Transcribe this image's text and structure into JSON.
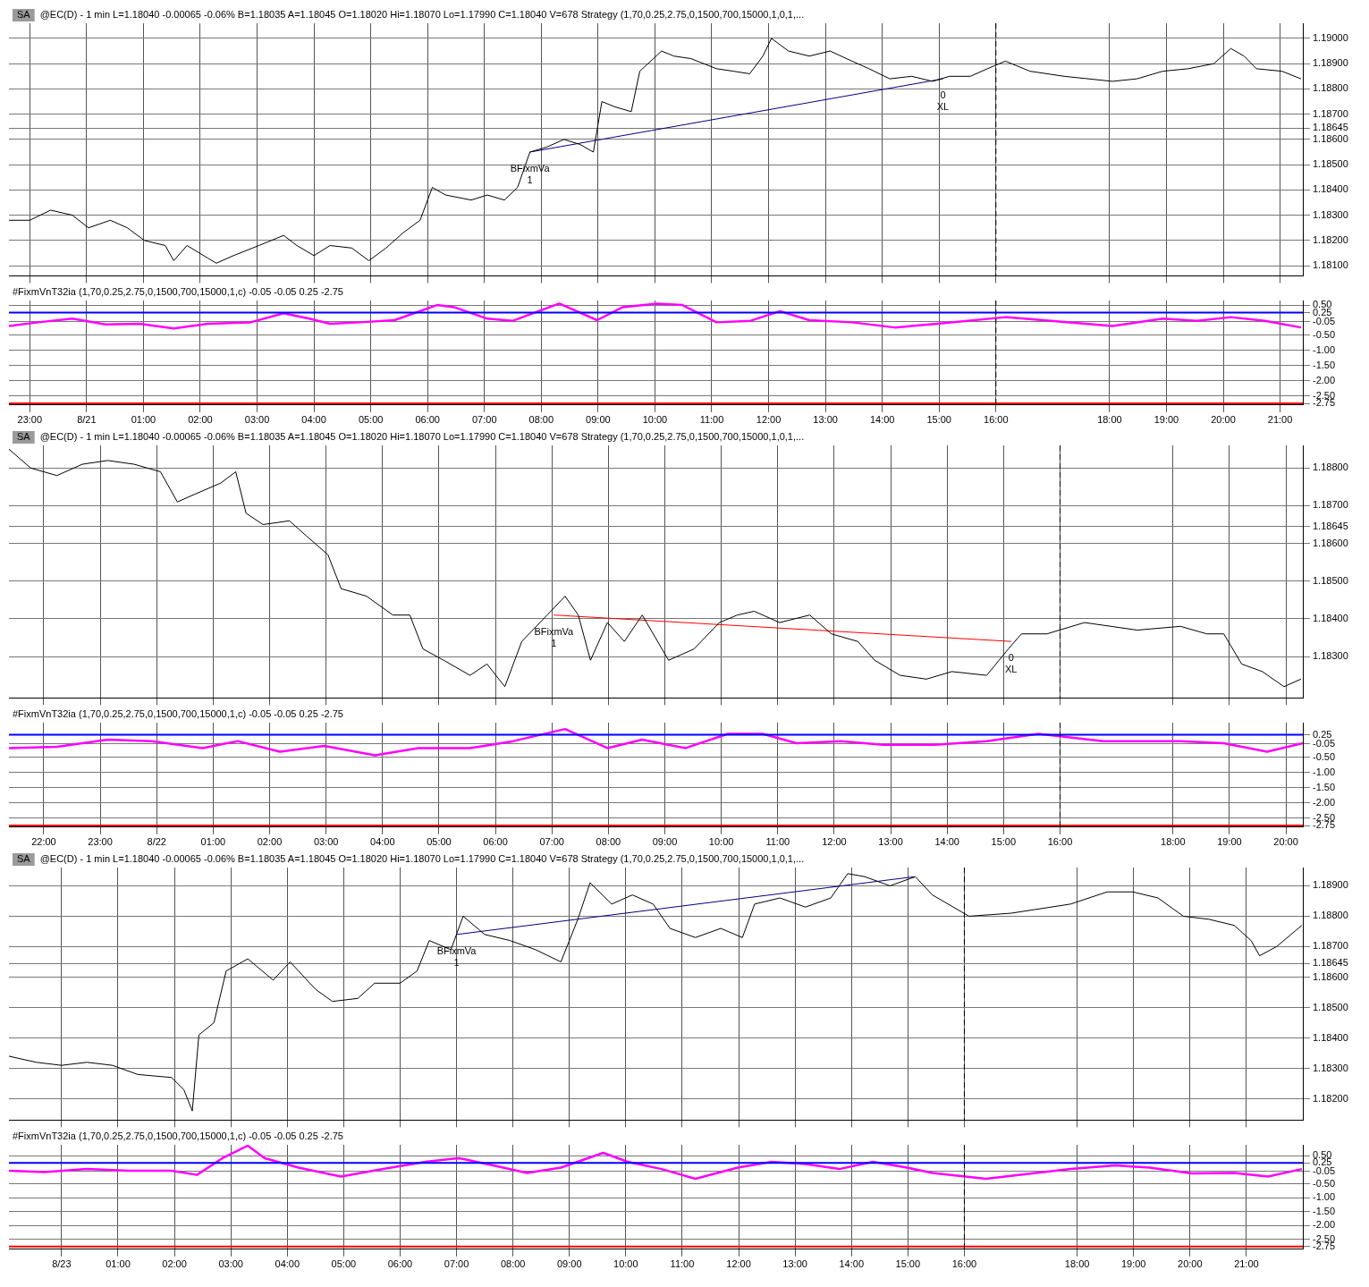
{
  "chart_data": [
    {
      "type": "line",
      "title": "@EC(D) - 1 min L=1.18040 -0.00065 -0.06% B=1.18035 A=1.18045 O=1.18020 Hi=1.18070 Lo=1.17990 C=1.18040 V=678 Strategy (1,70,0.25,2.75,0,1500,700,15000,1,0,1,...",
      "annotations": [
        "SA",
        {
          "text": "BFixmVa",
          "x": "--08-21T07:48",
          "y": 1.1855
        },
        {
          "text": "1",
          "x": "--08-21T07:48",
          "y": 1.1855
        },
        {
          "text": "0",
          "x": "--08-21T15:04",
          "y": 1.1884
        },
        {
          "text": "XL",
          "x": "--08-21T15:04",
          "y": 1.1884
        }
      ],
      "series": [
        {
          "color": "#000000",
          "x": [
            "--08-20T22:38",
            "--08-20T23:00",
            "--08-20T23:22",
            "--08-20T23:45",
            "--08-21T00:02",
            "--08-21T00:25",
            "--08-21T00:43",
            "--08-21T01:01",
            "--08-21T01:23",
            "--08-21T01:32",
            "--08-21T01:46",
            "--08-21T02:08",
            "--08-21T02:17",
            "--08-21T02:35",
            "--08-21T03:02",
            "--08-21T03:28",
            "--08-21T03:42",
            "--08-21T04:00",
            "--08-21T04:17",
            "--08-21T04:40",
            "--08-21T04:58",
            "--08-21T05:16",
            "--08-21T05:34",
            "--08-21T05:52",
            "--08-21T06:05",
            "--08-21T06:19",
            "--08-21T06:46",
            "--08-21T07:03",
            "--08-21T07:21",
            "--08-21T07:35",
            "--08-21T07:48",
            "--08-21T08:06",
            "--08-21T08:24",
            "--08-21T08:41",
            "--08-21T08:55",
            "--08-21T09:04",
            "--08-21T09:17",
            "--08-21T09:35",
            "--08-21T09:44",
            "--08-21T10:07",
            "--08-21T10:20",
            "--08-21T10:38",
            "--08-21T11:05",
            "--08-21T11:23",
            "--08-21T11:40",
            "--08-21T11:54",
            "--08-21T12:03",
            "--08-21T12:21",
            "--08-21T12:43",
            "--08-21T13:05",
            "--08-21T13:28",
            "--08-21T13:46",
            "--08-21T14:08",
            "--08-21T14:31",
            "--08-21T14:53",
            "--08-21T15:11",
            "--08-21T15:33",
            "--08-21T15:51",
            "--08-21T16:10",
            "--08-21T16:36",
            "--08-21T17:12",
            "--08-21T18:03",
            "--08-21T18:29",
            "--08-21T18:56",
            "--08-21T19:23",
            "--08-21T19:50",
            "--08-21T20:08",
            "--08-21T20:22",
            "--08-21T20:35",
            "--08-21T21:02",
            "--08-21T21:22"
          ],
          "values": [
            1.1828,
            1.1828,
            1.1832,
            1.183,
            1.1825,
            1.1828,
            1.1825,
            1.182,
            1.1818,
            1.1812,
            1.1818,
            1.1813,
            1.1811,
            1.1814,
            1.1818,
            1.1822,
            1.1818,
            1.1814,
            1.1818,
            1.1817,
            1.1812,
            1.1817,
            1.1823,
            1.1828,
            1.1841,
            1.1838,
            1.1836,
            1.1838,
            1.1836,
            1.1841,
            1.1855,
            1.1857,
            1.186,
            1.1858,
            1.1855,
            1.1875,
            1.1873,
            1.1871,
            1.1887,
            1.1895,
            1.1893,
            1.1892,
            1.1888,
            1.1887,
            1.1886,
            1.1893,
            1.19,
            1.1895,
            1.1893,
            1.1895,
            1.1891,
            1.1888,
            1.1884,
            1.1885,
            1.1883,
            1.1885,
            1.1885,
            1.1888,
            1.1891,
            1.1887,
            1.1885,
            1.1883,
            1.1884,
            1.1887,
            1.1888,
            1.189,
            1.1896,
            1.1893,
            1.1888,
            1.1887,
            1.1884
          ]
        },
        {
          "type": "line",
          "color": "#000080",
          "x": [
            "--08-21T07:48",
            "--08-21T15:04"
          ],
          "values": [
            1.1855,
            1.1884
          ]
        }
      ],
      "xlim": [
        "--08-20T22:38",
        "--08-21T21:24"
      ],
      "ylim": [
        1.1806,
        1.1906
      ],
      "xticks": [
        {
          "value": "--08-20T23:00",
          "label": "23:00"
        },
        {
          "value": "--08-21T00:00",
          "label": "8/21"
        },
        {
          "value": "--08-21T01:00",
          "label": "01:00"
        },
        {
          "value": "--08-21T02:00",
          "label": "02:00"
        },
        {
          "value": "--08-21T03:00",
          "label": "03:00"
        },
        {
          "value": "--08-21T04:00",
          "label": "04:00"
        },
        {
          "value": "--08-21T05:00",
          "label": "05:00"
        },
        {
          "value": "--08-21T06:00",
          "label": "06:00"
        },
        {
          "value": "--08-21T07:00",
          "label": "07:00"
        },
        {
          "value": "--08-21T08:00",
          "label": "08:00"
        },
        {
          "value": "--08-21T09:00",
          "label": "09:00"
        },
        {
          "value": "--08-21T10:00",
          "label": "10:00"
        },
        {
          "value": "--08-21T11:00",
          "label": "11:00"
        },
        {
          "value": "--08-21T12:00",
          "label": "12:00"
        },
        {
          "value": "--08-21T13:00",
          "label": "13:00"
        },
        {
          "value": "--08-21T14:00",
          "label": "14:00"
        },
        {
          "value": "--08-21T15:00",
          "label": "15:00"
        },
        {
          "value": "--08-21T16:00",
          "label": "16:00"
        },
        {
          "value": "--08-21T18:00",
          "label": "18:00"
        },
        {
          "value": "--08-21T19:00",
          "label": "19:00"
        },
        {
          "value": "--08-21T20:00",
          "label": "20:00"
        },
        {
          "value": "--08-21T21:00",
          "label": "21:00"
        }
      ],
      "yticks": [
        {
          "value": 1.181,
          "label": "1.18100"
        },
        {
          "value": 1.182,
          "label": "1.18200"
        },
        {
          "value": 1.183,
          "label": "1.18300"
        },
        {
          "value": 1.184,
          "label": "1.18400"
        },
        {
          "value": 1.185,
          "label": "1.18500"
        },
        {
          "value": 1.186,
          "label": "1.18600"
        },
        {
          "value": 1.18645,
          "label": "1.18645"
        },
        {
          "value": 1.187,
          "label": "1.18700"
        },
        {
          "value": 1.188,
          "label": "1.18800"
        },
        {
          "value": 1.189,
          "label": "1.18900"
        },
        {
          "value": 1.19,
          "label": "1.19000"
        }
      ],
      "ref_lines": [
        {
          "axis": "x",
          "value": "--08-21T16:00",
          "color": "#000000",
          "line_style": "dashed"
        }
      ],
      "grid": true,
      "marker": "none",
      "tick_labels": "y"
    },
    {
      "type": "line",
      "title": "#FixmVnT32ia (1,70,0.25,2.75,0,1500,700,15000,1,c) -0.05 -0.05 0.25 -2.75",
      "series": [
        {
          "color": "#ff00ff",
          "x": [
            "--08-20T22:38",
            "--08-20T23:09",
            "--08-20T23:45",
            "--08-21T00:20",
            "--08-21T00:56",
            "--08-21T01:32",
            "--08-21T02:08",
            "--08-21T02:53",
            "--08-21T03:28",
            "--08-21T03:55",
            "--08-21T04:17",
            "--08-21T04:49",
            "--08-21T05:25",
            "--08-21T06:10",
            "--08-21T06:28",
            "--08-21T07:03",
            "--08-21T07:30",
            "--08-21T08:19",
            "--08-21T08:59",
            "--08-21T09:26",
            "--08-21T10:02",
            "--08-21T10:29",
            "--08-21T11:05",
            "--08-21T11:41",
            "--08-21T12:12",
            "--08-21T12:43",
            "--08-21T13:28",
            "--08-21T14:13",
            "--08-21T14:58",
            "--08-21T16:10",
            "--08-21T18:03",
            "--08-21T18:56",
            "--08-21T19:32",
            "--08-21T20:08",
            "--08-21T20:44",
            "--08-21T21:22"
          ],
          "values": [
            -0.19,
            -0.07,
            0.05,
            -0.14,
            -0.12,
            -0.27,
            -0.12,
            -0.07,
            0.23,
            0.05,
            -0.12,
            -0.07,
            0,
            0.5,
            0.43,
            0.05,
            -0.02,
            0.55,
            0,
            0.43,
            0.55,
            0.5,
            -0.07,
            -0.02,
            0.3,
            0,
            -0.07,
            -0.24,
            -0.12,
            0.1,
            -0.19,
            0.05,
            -0.02,
            0.1,
            -0.02,
            -0.24
          ]
        }
      ],
      "xlim": [
        "--08-20T22:38",
        "--08-21T21:24"
      ],
      "ylim": [
        -2.8,
        0.65
      ],
      "xticks": [
        {
          "value": "--08-20T23:00",
          "label": "23:00"
        },
        {
          "value": "--08-21T00:00",
          "label": "8/21"
        },
        {
          "value": "--08-21T01:00",
          "label": "01:00"
        },
        {
          "value": "--08-21T02:00",
          "label": "02:00"
        },
        {
          "value": "--08-21T03:00",
          "label": "03:00"
        },
        {
          "value": "--08-21T04:00",
          "label": "04:00"
        },
        {
          "value": "--08-21T05:00",
          "label": "05:00"
        },
        {
          "value": "--08-21T06:00",
          "label": "06:00"
        },
        {
          "value": "--08-21T07:00",
          "label": "07:00"
        },
        {
          "value": "--08-21T08:00",
          "label": "08:00"
        },
        {
          "value": "--08-21T09:00",
          "label": "09:00"
        },
        {
          "value": "--08-21T10:00",
          "label": "10:00"
        },
        {
          "value": "--08-21T11:00",
          "label": "11:00"
        },
        {
          "value": "--08-21T12:00",
          "label": "12:00"
        },
        {
          "value": "--08-21T13:00",
          "label": "13:00"
        },
        {
          "value": "--08-21T14:00",
          "label": "14:00"
        },
        {
          "value": "--08-21T15:00",
          "label": "15:00"
        },
        {
          "value": "--08-21T16:00",
          "label": "16:00"
        },
        {
          "value": "--08-21T18:00",
          "label": "18:00"
        },
        {
          "value": "--08-21T19:00",
          "label": "19:00"
        },
        {
          "value": "--08-21T20:00",
          "label": "20:00"
        },
        {
          "value": "--08-21T21:00",
          "label": "21:00"
        }
      ],
      "yticks": [
        {
          "value": -2.75,
          "label": "-2.75"
        },
        {
          "value": -2.5,
          "label": "-2.50"
        },
        {
          "value": -2,
          "label": "-2.00"
        },
        {
          "value": -1.5,
          "label": "-1.50"
        },
        {
          "value": -1,
          "label": "-1.00"
        },
        {
          "value": -0.5,
          "label": "-0.50"
        },
        {
          "value": -0.05,
          "label": "-0.05"
        },
        {
          "value": 0.25,
          "label": "0.25"
        },
        {
          "value": 0.5,
          "label": "0.50"
        }
      ],
      "ref_lines": [
        {
          "axis": "y",
          "value": 0.25,
          "color": "#0000ff"
        },
        {
          "axis": "y",
          "value": -2.75,
          "color": "#ff0000"
        },
        {
          "axis": "x",
          "value": "--08-21T16:00",
          "color": "#000000",
          "line_style": "dashed"
        }
      ],
      "grid": true,
      "marker": "none"
    },
    {
      "type": "line",
      "title": "@EC(D) - 1 min L=1.18040 -0.00065 -0.06% B=1.18035 A=1.18045 O=1.18020 Hi=1.18070 Lo=1.17990 C=1.18040 V=678 Strategy (1,70,0.25,2.75,0,1500,700,15000,1,0,1,...",
      "annotations": [
        "SA",
        {
          "text": "BFixmVa",
          "x": "--08-22T07:02",
          "y": 1.1841
        },
        {
          "text": "1",
          "x": "--08-22T07:02",
          "y": 1.1841
        },
        {
          "text": "0",
          "x": "--08-22T15:08",
          "y": 1.1834
        },
        {
          "text": "XL",
          "x": "--08-22T15:08",
          "y": 1.1834
        }
      ],
      "series": [
        {
          "color": "#000000",
          "x": [
            "--08-21T21:23",
            "--08-21T21:46",
            "--08-21T22:14",
            "--08-21T22:41",
            "--08-21T23:08",
            "--08-21T23:36",
            "--08-22T00:04",
            "--08-22T00:22",
            "--08-22T00:40",
            "--08-22T01:08",
            "--08-22T01:24",
            "--08-22T01:35",
            "--08-22T01:53",
            "--08-22T02:21",
            "--08-22T02:39",
            "--08-22T03:02",
            "--08-22T03:16",
            "--08-22T03:43",
            "--08-22T04:11",
            "--08-22T04:29",
            "--08-22T04:43",
            "--08-22T05:05",
            "--08-22T05:33",
            "--08-22T05:51",
            "--08-22T06:10",
            "--08-22T06:28",
            "--08-22T06:55",
            "--08-22T07:14",
            "--08-22T07:28",
            "--08-22T07:41",
            "--08-22T07:59",
            "--08-22T08:17",
            "--08-22T08:36",
            "--08-22T09:04",
            "--08-22T09:31",
            "--08-22T09:58",
            "--08-22T10:17",
            "--08-22T10:35",
            "--08-22T11:02",
            "--08-22T11:34",
            "--08-22T11:57",
            "--08-22T12:25",
            "--08-22T12:43",
            "--08-22T13:10",
            "--08-22T13:38",
            "--08-22T14:05",
            "--08-22T14:42",
            "--08-22T15:05",
            "--08-22T15:19",
            "--08-22T15:46",
            "--08-22T16:26",
            "--08-22T17:22",
            "--08-22T18:08",
            "--08-22T18:36",
            "--08-22T18:54",
            "--08-22T19:13",
            "--08-22T19:35",
            "--08-22T19:58",
            "--08-22T20:16"
          ],
          "values": [
            1.1885,
            1.188,
            1.1878,
            1.1881,
            1.1882,
            1.1881,
            1.1879,
            1.1871,
            1.1873,
            1.1876,
            1.1879,
            1.1868,
            1.1865,
            1.1866,
            1.1862,
            1.1857,
            1.1848,
            1.1846,
            1.1841,
            1.1841,
            1.1832,
            1.1829,
            1.1825,
            1.1828,
            1.1822,
            1.1834,
            1.1841,
            1.1846,
            1.1841,
            1.1829,
            1.1839,
            1.1834,
            1.1841,
            1.1829,
            1.1832,
            1.1839,
            1.1841,
            1.1842,
            1.1839,
            1.1841,
            1.1836,
            1.1834,
            1.1829,
            1.1825,
            1.1824,
            1.1826,
            1.1825,
            1.1832,
            1.1836,
            1.1836,
            1.1839,
            1.1837,
            1.1838,
            1.1836,
            1.1836,
            1.1828,
            1.1826,
            1.1822,
            1.1824
          ]
        },
        {
          "type": "line",
          "color": "#ff0000",
          "x": [
            "--08-22T07:02",
            "--08-22T15:08"
          ],
          "values": [
            1.1841,
            1.1834
          ]
        }
      ],
      "xlim": [
        "--08-21T21:23",
        "--08-22T20:18"
      ],
      "ylim": [
        1.1819,
        1.1886
      ],
      "xticks": [
        {
          "value": "--08-21T22:00",
          "label": "22:00"
        },
        {
          "value": "--08-21T23:00",
          "label": "23:00"
        },
        {
          "value": "--08-22T00:00",
          "label": "8/22"
        },
        {
          "value": "--08-22T01:00",
          "label": "01:00"
        },
        {
          "value": "--08-22T02:00",
          "label": "02:00"
        },
        {
          "value": "--08-22T03:00",
          "label": "03:00"
        },
        {
          "value": "--08-22T04:00",
          "label": "04:00"
        },
        {
          "value": "--08-22T05:00",
          "label": "05:00"
        },
        {
          "value": "--08-22T06:00",
          "label": "06:00"
        },
        {
          "value": "--08-22T07:00",
          "label": "07:00"
        },
        {
          "value": "--08-22T08:00",
          "label": "08:00"
        },
        {
          "value": "--08-22T09:00",
          "label": "09:00"
        },
        {
          "value": "--08-22T10:00",
          "label": "10:00"
        },
        {
          "value": "--08-22T11:00",
          "label": "11:00"
        },
        {
          "value": "--08-22T12:00",
          "label": "12:00"
        },
        {
          "value": "--08-22T13:00",
          "label": "13:00"
        },
        {
          "value": "--08-22T14:00",
          "label": "14:00"
        },
        {
          "value": "--08-22T15:00",
          "label": "15:00"
        },
        {
          "value": "--08-22T16:00",
          "label": "16:00"
        },
        {
          "value": "--08-22T18:00",
          "label": "18:00"
        },
        {
          "value": "--08-22T19:00",
          "label": "19:00"
        },
        {
          "value": "--08-22T20:00",
          "label": "20:00"
        }
      ],
      "yticks": [
        {
          "value": 1.183,
          "label": "1.18300"
        },
        {
          "value": 1.184,
          "label": "1.18400"
        },
        {
          "value": 1.185,
          "label": "1.18500"
        },
        {
          "value": 1.186,
          "label": "1.18600"
        },
        {
          "value": 1.18645,
          "label": "1.18645"
        },
        {
          "value": 1.187,
          "label": "1.18700"
        },
        {
          "value": 1.188,
          "label": "1.18800"
        }
      ],
      "ref_lines": [
        {
          "axis": "x",
          "value": "--08-22T16:00",
          "color": "#000000",
          "line_style": "dashed"
        }
      ],
      "grid": true,
      "marker": "none",
      "tick_labels": "y"
    },
    {
      "type": "line",
      "title": "#FixmVnT32ia (1,70,0.25,2.75,0,1500,700,15000,1,c) -0.05 -0.05 0.25 -2.75",
      "series": [
        {
          "color": "#ff00ff",
          "x": [
            "--08-21T21:23",
            "--08-21T22:14",
            "--08-21T23:08",
            "--08-21T23:55",
            "--08-22T00:49",
            "--08-22T01:26",
            "--08-22T02:11",
            "--08-22T02:58",
            "--08-22T03:52",
            "--08-22T04:38",
            "--08-22T05:33",
            "--08-22T06:19",
            "--08-22T07:14",
            "--08-22T07:59",
            "--08-22T08:36",
            "--08-22T09:22",
            "--08-22T10:07",
            "--08-22T10:44",
            "--08-22T11:20",
            "--08-22T12:07",
            "--08-22T12:52",
            "--08-22T13:47",
            "--08-22T14:42",
            "--08-22T15:37",
            "--08-22T16:46",
            "--08-22T18:08",
            "--08-22T18:54",
            "--08-22T19:40",
            "--08-22T20:18"
          ],
          "values": [
            -0.19,
            -0.15,
            0.09,
            0.04,
            -0.19,
            0.04,
            -0.31,
            -0.12,
            -0.43,
            -0.19,
            -0.19,
            0.04,
            0.44,
            -0.19,
            0.09,
            -0.19,
            0.28,
            0.28,
            -0.03,
            0.04,
            -0.08,
            -0.08,
            0.04,
            0.28,
            0.04,
            0.04,
            -0.03,
            -0.31,
            -0.03
          ]
        }
      ],
      "xlim": [
        "--08-21T21:23",
        "--08-22T20:18"
      ],
      "ylim": [
        -2.8,
        0.65
      ],
      "xticks": [
        {
          "value": "--08-21T22:00",
          "label": "22:00"
        },
        {
          "value": "--08-21T23:00",
          "label": "23:00"
        },
        {
          "value": "--08-22T00:00",
          "label": "8/22"
        },
        {
          "value": "--08-22T01:00",
          "label": "01:00"
        },
        {
          "value": "--08-22T02:00",
          "label": "02:00"
        },
        {
          "value": "--08-22T03:00",
          "label": "03:00"
        },
        {
          "value": "--08-22T04:00",
          "label": "04:00"
        },
        {
          "value": "--08-22T05:00",
          "label": "05:00"
        },
        {
          "value": "--08-22T06:00",
          "label": "06:00"
        },
        {
          "value": "--08-22T07:00",
          "label": "07:00"
        },
        {
          "value": "--08-22T08:00",
          "label": "08:00"
        },
        {
          "value": "--08-22T09:00",
          "label": "09:00"
        },
        {
          "value": "--08-22T10:00",
          "label": "10:00"
        },
        {
          "value": "--08-22T11:00",
          "label": "11:00"
        },
        {
          "value": "--08-22T12:00",
          "label": "12:00"
        },
        {
          "value": "--08-22T13:00",
          "label": "13:00"
        },
        {
          "value": "--08-22T14:00",
          "label": "14:00"
        },
        {
          "value": "--08-22T15:00",
          "label": "15:00"
        },
        {
          "value": "--08-22T16:00",
          "label": "16:00"
        },
        {
          "value": "--08-22T18:00",
          "label": "18:00"
        },
        {
          "value": "--08-22T19:00",
          "label": "19:00"
        },
        {
          "value": "--08-22T20:00",
          "label": "20:00"
        }
      ],
      "yticks": [
        {
          "value": -2.75,
          "label": "-2.75"
        },
        {
          "value": -2.5,
          "label": "-2.50"
        },
        {
          "value": -2,
          "label": "-2.00"
        },
        {
          "value": -1.5,
          "label": "-1.50"
        },
        {
          "value": -1,
          "label": "-1.00"
        },
        {
          "value": -0.5,
          "label": "-0.50"
        },
        {
          "value": -0.05,
          "label": "-0.05"
        },
        {
          "value": 0.25,
          "label": "0.25"
        }
      ],
      "ref_lines": [
        {
          "axis": "y",
          "value": 0.25,
          "color": "#0000ff"
        },
        {
          "axis": "y",
          "value": -2.75,
          "color": "#ff0000"
        },
        {
          "axis": "x",
          "value": "--08-22T16:00",
          "color": "#000000",
          "line_style": "dashed"
        }
      ],
      "grid": true,
      "marker": "none"
    },
    {
      "type": "line",
      "title": "@EC(D) - 1 min L=1.18040 -0.00065 -0.06% B=1.18035 A=1.18045 O=1.18020 Hi=1.18070 Lo=1.17990 C=1.18040 V=678 Strategy (1,70,0.25,2.75,0,1500,700,15000,1,0,1,...",
      "annotations": [
        "SA",
        {
          "text": "BFixmVa",
          "x": "--08-23T07:00",
          "y": 1.1874
        },
        {
          "text": "1",
          "x": "--08-23T07:00",
          "y": 1.1874
        }
      ],
      "series": [
        {
          "color": "#000000",
          "x": [
            "--08-22T23:04",
            "--08-22T23:33",
            "--08-23T00:00",
            "--08-23T00:27",
            "--08-23T00:54",
            "--08-23T01:21",
            "--08-23T01:57",
            "--08-23T02:10",
            "--08-23T02:19",
            "--08-23T02:26",
            "--08-23T02:42",
            "--08-23T02:55",
            "--08-23T03:18",
            "--08-23T03:45",
            "--08-23T04:03",
            "--08-23T04:30",
            "--08-23T04:48",
            "--08-23T05:15",
            "--08-23T05:33",
            "--08-23T06:00",
            "--08-23T06:18",
            "--08-23T06:31",
            "--08-23T06:54",
            "--08-23T07:07",
            "--08-23T07:30",
            "--08-23T07:57",
            "--08-23T08:24",
            "--08-23T08:51",
            "--08-23T09:09",
            "--08-23T09:22",
            "--08-23T09:45",
            "--08-23T10:07",
            "--08-23T10:29",
            "--08-23T10:47",
            "--08-23T11:14",
            "--08-23T11:41",
            "--08-23T12:04",
            "--08-23T12:17",
            "--08-23T12:44",
            "--08-23T13:11",
            "--08-23T13:38",
            "--08-23T13:56",
            "--08-23T14:14",
            "--08-23T14:41",
            "--08-23T15:08",
            "--08-23T15:26",
            "--08-23T16:05",
            "--08-23T16:50",
            "--08-23T17:53",
            "--08-23T18:32",
            "--08-23T18:59",
            "--08-23T19:26",
            "--08-23T19:53",
            "--08-23T20:20",
            "--08-23T20:47",
            "--08-23T21:05",
            "--08-23T21:14",
            "--08-23T21:32",
            "--08-23T21:59"
          ],
          "values": [
            1.1834,
            1.1832,
            1.1831,
            1.1832,
            1.1831,
            1.1828,
            1.1827,
            1.1823,
            1.1816,
            1.1841,
            1.1845,
            1.1862,
            1.1866,
            1.1859,
            1.1865,
            1.1856,
            1.1852,
            1.1853,
            1.1858,
            1.1858,
            1.1862,
            1.1872,
            1.1869,
            1.188,
            1.1874,
            1.1872,
            1.1869,
            1.1865,
            1.1879,
            1.1891,
            1.1884,
            1.1887,
            1.1884,
            1.1876,
            1.1873,
            1.1876,
            1.1873,
            1.1884,
            1.1886,
            1.1883,
            1.1886,
            1.1894,
            1.1893,
            1.189,
            1.1893,
            1.1887,
            1.188,
            1.1881,
            1.1884,
            1.1888,
            1.1888,
            1.1886,
            1.188,
            1.1879,
            1.1877,
            1.1872,
            1.1867,
            1.187,
            1.1877
          ]
        },
        {
          "type": "line",
          "color": "#000080",
          "x": [
            "--08-23T07:00",
            "--08-23T15:07"
          ],
          "values": [
            1.1874,
            1.1893
          ]
        }
      ],
      "xlim": [
        "--08-22T23:04",
        "--08-23T22:00"
      ],
      "ylim": [
        1.1813,
        1.1896
      ],
      "xticks": [
        {
          "value": "--08-23T00:00",
          "label": "8/23"
        },
        {
          "value": "--08-23T01:00",
          "label": "01:00"
        },
        {
          "value": "--08-23T02:00",
          "label": "02:00"
        },
        {
          "value": "--08-23T03:00",
          "label": "03:00"
        },
        {
          "value": "--08-23T04:00",
          "label": "04:00"
        },
        {
          "value": "--08-23T05:00",
          "label": "05:00"
        },
        {
          "value": "--08-23T06:00",
          "label": "06:00"
        },
        {
          "value": "--08-23T07:00",
          "label": "07:00"
        },
        {
          "value": "--08-23T08:00",
          "label": "08:00"
        },
        {
          "value": "--08-23T09:00",
          "label": "09:00"
        },
        {
          "value": "--08-23T10:00",
          "label": "10:00"
        },
        {
          "value": "--08-23T11:00",
          "label": "11:00"
        },
        {
          "value": "--08-23T12:00",
          "label": "12:00"
        },
        {
          "value": "--08-23T13:00",
          "label": "13:00"
        },
        {
          "value": "--08-23T14:00",
          "label": "14:00"
        },
        {
          "value": "--08-23T15:00",
          "label": "15:00"
        },
        {
          "value": "--08-23T16:00",
          "label": "16:00"
        },
        {
          "value": "--08-23T18:00",
          "label": "18:00"
        },
        {
          "value": "--08-23T19:00",
          "label": "19:00"
        },
        {
          "value": "--08-23T20:00",
          "label": "20:00"
        },
        {
          "value": "--08-23T21:00",
          "label": "21:00"
        }
      ],
      "yticks": [
        {
          "value": 1.182,
          "label": "1.18200"
        },
        {
          "value": 1.183,
          "label": "1.18300"
        },
        {
          "value": 1.184,
          "label": "1.18400"
        },
        {
          "value": 1.185,
          "label": "1.18500"
        },
        {
          "value": 1.186,
          "label": "1.18600"
        },
        {
          "value": 1.18645,
          "label": "1.18645"
        },
        {
          "value": 1.187,
          "label": "1.18700"
        },
        {
          "value": 1.188,
          "label": "1.18800"
        },
        {
          "value": 1.189,
          "label": "1.18900"
        }
      ],
      "ref_lines": [
        {
          "axis": "x",
          "value": "--08-23T16:00",
          "color": "#000000",
          "line_style": "dashed"
        }
      ],
      "grid": true,
      "marker": "none",
      "tick_labels": "y"
    },
    {
      "type": "line",
      "title": "#FixmVnT32ia (1,70,0.25,2.75,0,1500,700,15000,1,c) -0.05 -0.05 0.25 -2.75",
      "series": [
        {
          "color": "#ff00ff",
          "x": [
            "--08-22T23:04",
            "--08-22T23:42",
            "--08-23T00:27",
            "--08-23T01:12",
            "--08-23T01:57",
            "--08-23T02:24",
            "--08-23T02:51",
            "--08-23T03:18",
            "--08-23T03:36",
            "--08-23T04:12",
            "--08-23T04:57",
            "--08-23T05:42",
            "--08-23T06:27",
            "--08-23T07:03",
            "--08-23T07:39",
            "--08-23T08:15",
            "--08-23T08:51",
            "--08-23T09:36",
            "--08-23T10:02",
            "--08-23T10:38",
            "--08-23T11:14",
            "--08-23T11:59",
            "--08-23T12:35",
            "--08-23T13:11",
            "--08-23T13:47",
            "--08-23T14:23",
            "--08-23T14:59",
            "--08-23T15:26",
            "--08-23T16:23",
            "--08-23T17:53",
            "--08-23T18:41",
            "--08-23T19:17",
            "--08-23T20:02",
            "--08-23T20:47",
            "--08-23T21:23",
            "--08-23T21:59"
          ],
          "values": [
            -0.03,
            -0.08,
            0.03,
            -0.03,
            -0.03,
            -0.18,
            0.42,
            0.87,
            0.42,
            0.08,
            -0.24,
            0.03,
            0.29,
            0.42,
            0.16,
            -0.11,
            0.08,
            0.61,
            0.29,
            0.03,
            -0.32,
            0.08,
            0.29,
            0.21,
            0.03,
            0.29,
            0.08,
            -0.11,
            -0.32,
            0.03,
            0.16,
            0.08,
            -0.13,
            -0.11,
            -0.24,
            0.03
          ]
        }
      ],
      "xlim": [
        "--08-22T23:04",
        "--08-23T22:00"
      ],
      "ylim": [
        -2.85,
        0.9
      ],
      "xticks": [
        {
          "value": "--08-23T00:00",
          "label": "8/23"
        },
        {
          "value": "--08-23T01:00",
          "label": "01:00"
        },
        {
          "value": "--08-23T02:00",
          "label": "02:00"
        },
        {
          "value": "--08-23T03:00",
          "label": "03:00"
        },
        {
          "value": "--08-23T04:00",
          "label": "04:00"
        },
        {
          "value": "--08-23T05:00",
          "label": "05:00"
        },
        {
          "value": "--08-23T06:00",
          "label": "06:00"
        },
        {
          "value": "--08-23T07:00",
          "label": "07:00"
        },
        {
          "value": "--08-23T08:00",
          "label": "08:00"
        },
        {
          "value": "--08-23T09:00",
          "label": "09:00"
        },
        {
          "value": "--08-23T10:00",
          "label": "10:00"
        },
        {
          "value": "--08-23T11:00",
          "label": "11:00"
        },
        {
          "value": "--08-23T12:00",
          "label": "12:00"
        },
        {
          "value": "--08-23T13:00",
          "label": "13:00"
        },
        {
          "value": "--08-23T14:00",
          "label": "14:00"
        },
        {
          "value": "--08-23T15:00",
          "label": "15:00"
        },
        {
          "value": "--08-23T16:00",
          "label": "16:00"
        },
        {
          "value": "--08-23T18:00",
          "label": "18:00"
        },
        {
          "value": "--08-23T19:00",
          "label": "19:00"
        },
        {
          "value": "--08-23T20:00",
          "label": "20:00"
        },
        {
          "value": "--08-23T21:00",
          "label": "21:00"
        }
      ],
      "yticks": [
        {
          "value": -2.75,
          "label": "-2.75"
        },
        {
          "value": -2.5,
          "label": "-2.50"
        },
        {
          "value": -2,
          "label": "-2.00"
        },
        {
          "value": -1.5,
          "label": "-1.50"
        },
        {
          "value": -1,
          "label": "-1.00"
        },
        {
          "value": -0.5,
          "label": "-0.50"
        },
        {
          "value": -0.05,
          "label": "-0.05"
        },
        {
          "value": 0.25,
          "label": "0.25"
        },
        {
          "value": 0.5,
          "label": "0.50"
        }
      ],
      "ref_lines": [
        {
          "axis": "y",
          "value": 0.25,
          "color": "#0000ff"
        },
        {
          "axis": "y",
          "value": -2.75,
          "color": "#ff0000"
        },
        {
          "axis": "x",
          "value": "--08-23T16:00",
          "color": "#000000",
          "line_style": "dashed"
        }
      ],
      "grid": true,
      "marker": "none"
    }
  ]
}
